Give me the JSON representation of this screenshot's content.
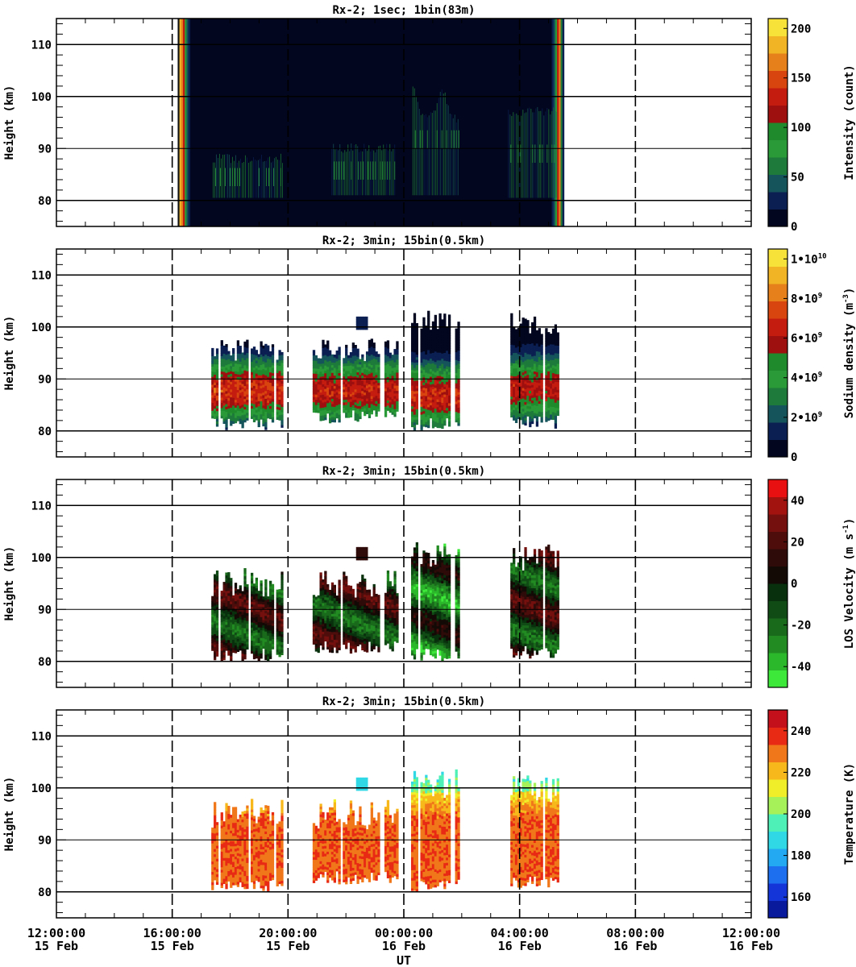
{
  "chart_data": [
    {
      "type": "heatmap",
      "title": "Rx-2;  1sec; 1bin(83m)",
      "ylabel": "Height (km)",
      "ylim": [
        75,
        115
      ],
      "y_ticks": [
        "80",
        "90",
        "100",
        "110"
      ],
      "colorbar": {
        "label": "Intensity (count)",
        "range": [
          0,
          210
        ],
        "ticks": [
          {
            "value": 0,
            "label": "0"
          },
          {
            "value": 50,
            "label": "50"
          },
          {
            "value": 100,
            "label": "100"
          },
          {
            "value": 150,
            "label": "150"
          },
          {
            "value": 200,
            "label": "200"
          }
        ],
        "colors": [
          "#02061e",
          "#0b1f52",
          "#15545a",
          "#1d7a3a",
          "#2a9a38",
          "#1e8a2c",
          "#9e0f0f",
          "#c51c10",
          "#d9450f",
          "#e6801a",
          "#f0b425",
          "#f7e23a"
        ]
      },
      "data_extent": {
        "x_start_hours": 16.3,
        "x_end_hours": 29.5
      },
      "echo_regions": [
        {
          "x": [
            17.4,
            19.8
          ],
          "y": [
            80.5,
            89
          ]
        },
        {
          "x": [
            21.5,
            23.7
          ],
          "y": [
            81,
            91
          ]
        },
        {
          "x": [
            24.3,
            25.9
          ],
          "y": [
            81,
            103
          ]
        },
        {
          "x": [
            27.6,
            29.3
          ],
          "y": [
            80.5,
            98
          ]
        }
      ],
      "grid_lines": {
        "dashed_x_hours": [
          16,
          20,
          24,
          28,
          32
        ],
        "solid_y_km": [
          80,
          90,
          100,
          110
        ]
      }
    },
    {
      "type": "heatmap",
      "title": "Rx-2; 3min; 15bin(0.5km)",
      "ylabel": "Height (km)",
      "ylim": [
        75,
        115
      ],
      "y_ticks": [
        "80",
        "90",
        "100",
        "110"
      ],
      "colorbar": {
        "label": "Sodium density (m",
        "label_sup": "-3",
        "label_end": ")",
        "range": [
          0,
          10500000000.0
        ],
        "ticks": [
          {
            "value": 0,
            "label": "0"
          },
          {
            "value": 2000000000.0,
            "label": "2•10",
            "sup": "9"
          },
          {
            "value": 4000000000.0,
            "label": "4•10",
            "sup": "9"
          },
          {
            "value": 6000000000.0,
            "label": "6•10",
            "sup": "9"
          },
          {
            "value": 8000000000.0,
            "label": "8•10",
            "sup": "9"
          },
          {
            "value": 10000000000.0,
            "label": "1•10",
            "sup": "10"
          }
        ],
        "colors": [
          "#02061e",
          "#0b1f52",
          "#15545a",
          "#1d7a3a",
          "#2a9a38",
          "#1e8a2c",
          "#9e0f0f",
          "#c51c10",
          "#d9450f",
          "#e6801a",
          "#f0b425",
          "#f7e23a"
        ]
      },
      "blocks": [
        {
          "x": [
            17.35,
            19.75
          ],
          "top": 97.5,
          "bottom": 80,
          "peak": 7000000000.0,
          "center": 87.5
        },
        {
          "x": [
            20.85,
            23.75
          ],
          "top": 97.5,
          "bottom": 81.5,
          "peak": 6500000000.0,
          "center": 87.5
        },
        {
          "x": [
            24.25,
            25.85
          ],
          "top": 103.5,
          "bottom": 80,
          "peak": 6800000000.0,
          "center": 86.5
        },
        {
          "x": [
            27.6,
            29.35
          ],
          "top": 102.5,
          "bottom": 80.5,
          "peak": 6200000000.0,
          "center": 88
        }
      ]
    },
    {
      "type": "heatmap",
      "title": "Rx-2; 3min; 15bin(0.5km)",
      "ylabel": "Height (km)",
      "ylim": [
        75,
        115
      ],
      "y_ticks": [
        "80",
        "90",
        "100",
        "110"
      ],
      "colorbar": {
        "label": "LOS Velocity (m s",
        "label_sup": "-1",
        "label_end": ")",
        "range": [
          -50,
          50
        ],
        "ticks": [
          {
            "value": -40,
            "label": "-40"
          },
          {
            "value": -20,
            "label": "-20"
          },
          {
            "value": 0,
            "label": "0"
          },
          {
            "value": 20,
            "label": "20"
          },
          {
            "value": 40,
            "label": "40"
          }
        ],
        "colors": [
          "#3ee83a",
          "#2bb82a",
          "#228c22",
          "#1a6a1c",
          "#104a14",
          "#08300c",
          "#130a06",
          "#2e0a08",
          "#4e0d0b",
          "#74110e",
          "#a2130f",
          "#e81010"
        ]
      },
      "blocks": [
        {
          "x": [
            17.35,
            19.75
          ],
          "top": 97.5,
          "bottom": 80
        },
        {
          "x": [
            20.85,
            23.75
          ],
          "top": 97.5,
          "bottom": 81.5
        },
        {
          "x": [
            24.25,
            25.85
          ],
          "top": 103.5,
          "bottom": 80
        },
        {
          "x": [
            27.6,
            29.35
          ],
          "top": 102.5,
          "bottom": 80.5
        }
      ]
    },
    {
      "type": "heatmap",
      "title": "Rx-2; 3min; 15bin(0.5km)",
      "ylabel": "Height (km)",
      "ylim": [
        75,
        115
      ],
      "y_ticks": [
        "80",
        "90",
        "100",
        "110"
      ],
      "colorbar": {
        "label": "Temperature (K)",
        "range": [
          150,
          250
        ],
        "ticks": [
          {
            "value": 160,
            "label": "160"
          },
          {
            "value": 180,
            "label": "180"
          },
          {
            "value": 200,
            "label": "200"
          },
          {
            "value": 220,
            "label": "220"
          },
          {
            "value": 240,
            "label": "240"
          }
        ],
        "colors": [
          "#0a1a9c",
          "#1435d8",
          "#1e6ef0",
          "#23a8f2",
          "#30d8e6",
          "#4ef0b8",
          "#a6f05a",
          "#f0ee28",
          "#f7b81c",
          "#f0781a",
          "#e82a14",
          "#c4101a"
        ]
      },
      "blocks": [
        {
          "x": [
            17.35,
            19.75
          ],
          "top": 97.5,
          "bottom": 80
        },
        {
          "x": [
            20.85,
            23.75
          ],
          "top": 97.5,
          "bottom": 81.5
        },
        {
          "x": [
            24.25,
            25.85
          ],
          "top": 103.5,
          "bottom": 80
        },
        {
          "x": [
            27.6,
            29.35
          ],
          "top": 102.5,
          "bottom": 80.5
        }
      ]
    }
  ],
  "x_axis": {
    "xlabel": "UT",
    "xlim_hours": [
      12,
      36
    ],
    "ticks": [
      {
        "hours": 12,
        "time": "12:00:00",
        "date": "15 Feb"
      },
      {
        "hours": 16,
        "time": "16:00:00",
        "date": "15 Feb"
      },
      {
        "hours": 20,
        "time": "20:00:00",
        "date": "15 Feb"
      },
      {
        "hours": 24,
        "time": "00:00:00",
        "date": "16 Feb"
      },
      {
        "hours": 28,
        "time": "04:00:00",
        "date": "16 Feb"
      },
      {
        "hours": 32,
        "time": "08:00:00",
        "date": "16 Feb"
      },
      {
        "hours": 36,
        "time": "12:00:00",
        "date": "16 Feb"
      }
    ]
  }
}
